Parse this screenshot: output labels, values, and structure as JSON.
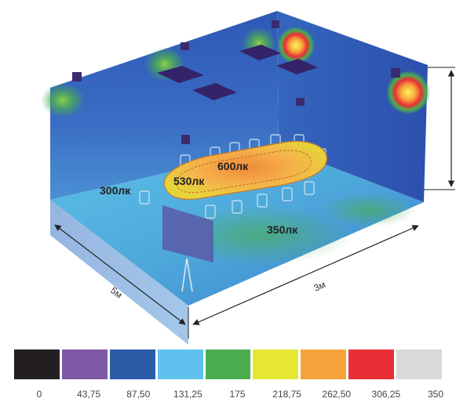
{
  "scene": {
    "lux_labels": [
      "600лк",
      "530лк",
      "300лк",
      "350лк"
    ],
    "dim_depth": "5м",
    "dim_width": "3м"
  },
  "legend": {
    "colors": [
      "#231f20",
      "#7e58a6",
      "#2a5ca8",
      "#5fc2ee",
      "#4aae4f",
      "#e6e734",
      "#f6a23a",
      "#ea2e36",
      "#d9d9d9"
    ],
    "ticks": [
      "0",
      "43,75",
      "87,50",
      "131,25",
      "175",
      "218,75",
      "262,50",
      "306,25",
      "350"
    ]
  }
}
